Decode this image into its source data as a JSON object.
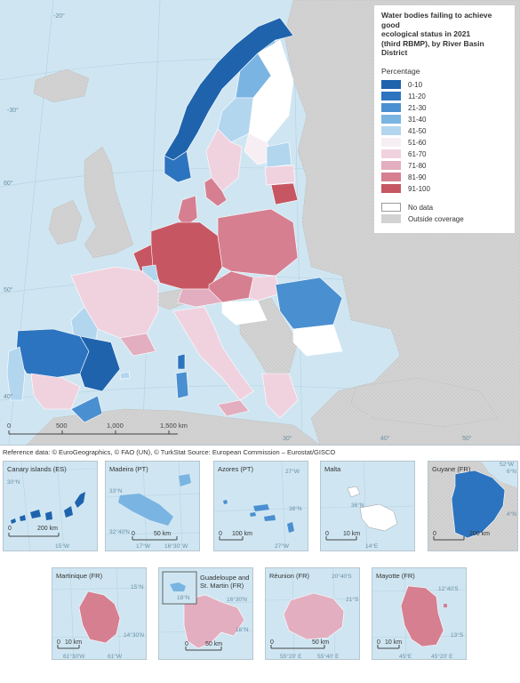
{
  "legend": {
    "title_line1": "Water bodies failing to achieve good",
    "title_line2": "ecological status in 2021",
    "title_line3": "(third RBMP), by River Basin District",
    "subtitle": "Percentage",
    "classes": [
      {
        "label": "0-10",
        "color": "#1f63ad"
      },
      {
        "label": "11-20",
        "color": "#2c74bf"
      },
      {
        "label": "21-30",
        "color": "#4a8fd0"
      },
      {
        "label": "31-40",
        "color": "#7ab4e2"
      },
      {
        "label": "41-50",
        "color": "#b3d6ef"
      },
      {
        "label": "51-60",
        "color": "#f7eef4"
      },
      {
        "label": "61-70",
        "color": "#f0d2df"
      },
      {
        "label": "71-80",
        "color": "#e3aebf"
      },
      {
        "label": "81-90",
        "color": "#d67f91"
      },
      {
        "label": "91-100",
        "color": "#c65762"
      }
    ],
    "no_data": {
      "label": "No data",
      "color": "#ffffff"
    },
    "outside": {
      "label": "Outside coverage",
      "color": "#d2d2d2"
    }
  },
  "scale_main": {
    "t0": "0",
    "t1": "500",
    "t2": "1,000",
    "t3": "1,500 km"
  },
  "graticule_labels": {
    "g1": "-30°",
    "g2": "-20°",
    "g3": "60°",
    "g4": "50°",
    "g5": "40°",
    "g6": "30°",
    "g7": "40°",
    "g8": "50°"
  },
  "reference": "Reference data: © EuroGeographics, © FAO (UN), © TurkStat Source: European Commission – Eurostat/GISCO",
  "insets": {
    "canary": {
      "title": "Canary islands (ES)",
      "lat": "30°N",
      "lon": "15°W",
      "scale_0": "0",
      "scale_1": "200 km"
    },
    "madeira": {
      "title": "Madeira (PT)",
      "lat1": "33°N",
      "lat2": "32°40'N",
      "lon1": "17°W",
      "lon2": "16°30' W",
      "scale_0": "0",
      "scale_1": "50 km"
    },
    "azores": {
      "title": "Azores (PT)",
      "lon1": "27°W",
      "lat1": "38°N",
      "lon2": "27°W",
      "scale_0": "0",
      "scale_1": "100 km"
    },
    "malta": {
      "title": "Malta",
      "lat": "36°N",
      "lon": "14°E",
      "scale_0": "0",
      "scale_1": "10 km"
    },
    "guyane": {
      "title": "Guyane (FR)",
      "lon1": "52°W",
      "lat1": "6°N",
      "lat2": "4°N",
      "scale_0": "0",
      "scale_1": "200 km"
    },
    "martinique": {
      "title": "Martinique (FR)",
      "lat1": "15°N",
      "lat2": "14°30'N",
      "lon1": "61°30'W",
      "lon2": "61°W",
      "scale_0": "0",
      "scale_1": "10 km"
    },
    "guadeloupe": {
      "title_line1": "Guadeloupe and",
      "title_line2": "St. Martin (FR)",
      "lat1": "16°30'N",
      "lat2": "16°N",
      "lon1": "18°N",
      "scale_0": "0",
      "scale_1": "50 km"
    },
    "reunion": {
      "title": "Réunion (FR)",
      "lon1": "20°40'S",
      "lat1": "21°S",
      "lon2": "55°20' E",
      "lon3": "55°40' E",
      "scale_0": "0",
      "scale_1": "50 km"
    },
    "mayotte": {
      "title": "Mayotte (FR)",
      "lat1": "12°40'S",
      "lat2": "13°S",
      "lon1": "45°E",
      "lon2": "45°20' E",
      "scale_0": "0",
      "scale_1": "10 km"
    }
  }
}
